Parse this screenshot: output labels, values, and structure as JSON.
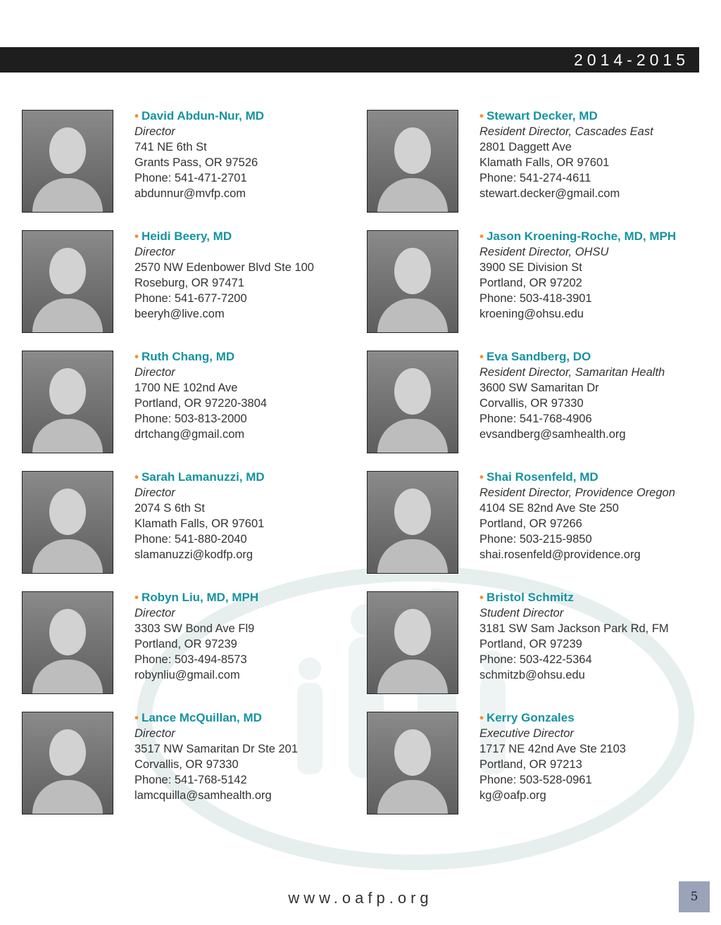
{
  "header": {
    "year": "2014-2015"
  },
  "footer": {
    "url": "www.oafp.org",
    "page_number": "5"
  },
  "colors": {
    "name": "#1593a0",
    "bullet": "#f0902a",
    "header_bar": "#1e1e1e",
    "page_box": "#9aa3b8"
  },
  "people": [
    {
      "name": "David Abdun-Nur, MD",
      "role": "Director",
      "address": "741 NE 6th St",
      "city": "Grants Pass, OR 97526",
      "phone": "Phone:  541-471-2701",
      "email": "abdunnur@mvfp.com"
    },
    {
      "name": "Stewart Decker, MD",
      "role": "Resident Director, Cascades East",
      "address": "2801 Daggett Ave",
      "city": "Klamath Falls, OR 97601",
      "phone": "Phone:  541-274-4611",
      "email": "stewart.decker@gmail.com"
    },
    {
      "name": "Heidi Beery, MD",
      "role": "Director",
      "address": "2570 NW Edenbower Blvd Ste 100",
      "city": "Roseburg, OR 97471",
      "phone": "Phone:  541-677-7200",
      "email": "beeryh@live.com"
    },
    {
      "name": "Jason Kroening-Roche, MD, MPH",
      "role": "Resident Director, OHSU",
      "address": "3900 SE Division St",
      "city": "Portland, OR 97202",
      "phone": "Phone:  503-418-3901",
      "email": "kroening@ohsu.edu"
    },
    {
      "name": "Ruth Chang, MD",
      "role": "Director",
      "address": "1700 NE 102nd Ave",
      "city": "Portland, OR 97220-3804",
      "phone": "Phone:  503-813-2000",
      "email": "drtchang@gmail.com"
    },
    {
      "name": "Eva Sandberg, DO",
      "role": "Resident Director, Samaritan Health",
      "address": "3600 SW Samaritan Dr",
      "city": "Corvallis, OR 97330",
      "phone": "Phone:  541-768-4906",
      "email": "evsandberg@samhealth.org"
    },
    {
      "name": "Sarah Lamanuzzi, MD",
      "role": "Director",
      "address": "2074 S 6th St",
      "city": "Klamath Falls, OR 97601",
      "phone": "Phone:  541-880-2040",
      "email": "slamanuzzi@kodfp.org"
    },
    {
      "name": "Shai Rosenfeld, MD",
      "role": "Resident Director, Providence Oregon",
      "address": "4104 SE 82nd Ave Ste 250",
      "city": "Portland, OR 97266",
      "phone": "Phone:  503-215-9850",
      "email": "shai.rosenfeld@providence.org"
    },
    {
      "name": "Robyn Liu, MD, MPH",
      "role": "Director",
      "address": "3303 SW Bond Ave Fl9",
      "city": "Portland, OR 97239",
      "phone": "Phone:  503-494-8573",
      "email": "robynliu@gmail.com"
    },
    {
      "name": "Bristol Schmitz",
      "role": "Student Director",
      "address": "3181 SW Sam Jackson Park Rd, FM",
      "city": "Portland, OR 97239",
      "phone": "Phone:  503-422-5364",
      "email": "schmitzb@ohsu.edu"
    },
    {
      "name": "Lance McQuillan, MD",
      "role": "Director",
      "address": "3517 NW Samaritan Dr Ste 201",
      "city": "Corvallis, OR 97330",
      "phone": "Phone:  541-768-5142",
      "email": "lamcquilla@samhealth.org"
    },
    {
      "name": "Kerry Gonzales",
      "role": "Executive Director",
      "address": "1717 NE 42nd Ave Ste 2103",
      "city": "Portland, OR 97213",
      "phone": "Phone:  503-528-0961",
      "email": "kg@oafp.org"
    }
  ]
}
